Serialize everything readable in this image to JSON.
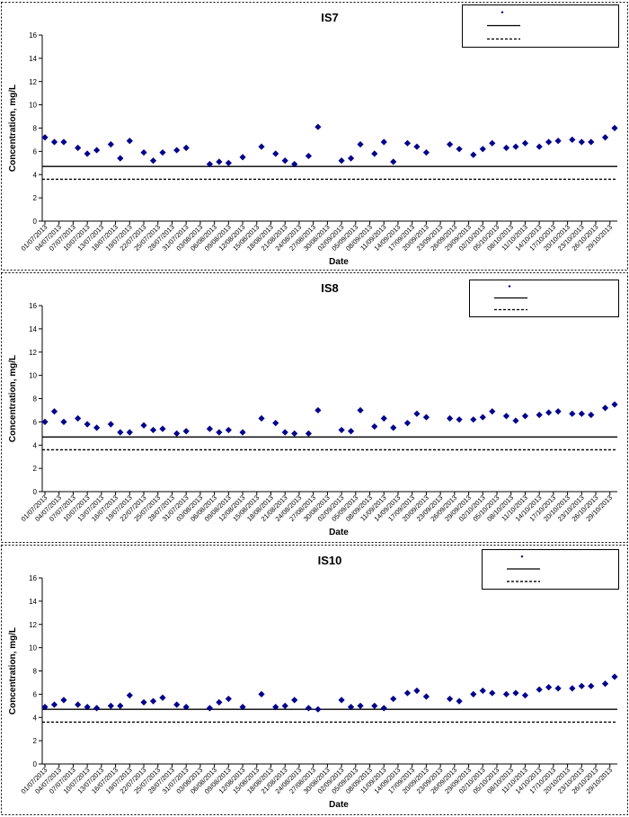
{
  "chart_data": [
    {
      "type": "scatter",
      "title": "IS7",
      "xlabel": "Date",
      "ylabel": "Concentration, mg/L",
      "ylim": [
        0,
        16
      ],
      "yticks": [
        0,
        2,
        4,
        6,
        8,
        10,
        12,
        14,
        16
      ],
      "xlim": [
        "01/07/2013",
        "30/10/2013"
      ],
      "x_tick_labels": [
        "01/07/2013",
        "04/07/2013",
        "07/07/2013",
        "10/07/2013",
        "13/07/2013",
        "16/07/2013",
        "19/07/2013",
        "22/07/2013",
        "25/07/2013",
        "28/07/2013",
        "31/07/2013",
        "03/08/2013",
        "06/08/2013",
        "09/08/2013",
        "12/08/2013",
        "15/08/2013",
        "18/08/2013",
        "21/08/2013",
        "24/08/2013",
        "27/08/2013",
        "30/08/2013",
        "02/09/2013",
        "05/09/2013",
        "08/09/2013",
        "11/09/2013",
        "14/09/2013",
        "17/09/2013",
        "20/09/2013",
        "23/09/2013",
        "26/09/2013",
        "29/09/2013",
        "02/10/2013",
        "05/10/2013",
        "08/10/2013",
        "11/10/2013",
        "14/10/2013",
        "17/10/2013",
        "20/10/2013",
        "23/10/2013",
        "26/10/2013",
        "29/10/2013"
      ],
      "grid": false,
      "legend": {
        "placement": "top-right"
      },
      "series": [
        {
          "marker": "diamond",
          "color": "#00008B",
          "points": [
            {
              "x": "01/07/2013",
              "y": 7.2
            },
            {
              "x": "03/07/2013",
              "y": 6.8
            },
            {
              "x": "05/07/2013",
              "y": 6.8
            },
            {
              "x": "08/07/2013",
              "y": 6.3
            },
            {
              "x": "10/07/2013",
              "y": 5.8
            },
            {
              "x": "12/07/2013",
              "y": 6.1
            },
            {
              "x": "15/07/2013",
              "y": 6.6
            },
            {
              "x": "17/07/2013",
              "y": 5.4
            },
            {
              "x": "19/07/2013",
              "y": 6.9
            },
            {
              "x": "22/07/2013",
              "y": 5.9
            },
            {
              "x": "24/07/2013",
              "y": 5.2
            },
            {
              "x": "26/07/2013",
              "y": 5.9
            },
            {
              "x": "29/07/2013",
              "y": 6.1
            },
            {
              "x": "31/07/2013",
              "y": 6.3
            },
            {
              "x": "05/08/2013",
              "y": 4.9
            },
            {
              "x": "07/08/2013",
              "y": 5.1
            },
            {
              "x": "09/08/2013",
              "y": 5.0
            },
            {
              "x": "12/08/2013",
              "y": 5.5
            },
            {
              "x": "16/08/2013",
              "y": 6.4
            },
            {
              "x": "19/08/2013",
              "y": 5.8
            },
            {
              "x": "21/08/2013",
              "y": 5.2
            },
            {
              "x": "23/08/2013",
              "y": 4.9
            },
            {
              "x": "26/08/2013",
              "y": 5.6
            },
            {
              "x": "28/08/2013",
              "y": 8.1
            },
            {
              "x": "02/09/2013",
              "y": 5.2
            },
            {
              "x": "04/09/2013",
              "y": 5.4
            },
            {
              "x": "06/09/2013",
              "y": 6.6
            },
            {
              "x": "09/09/2013",
              "y": 5.8
            },
            {
              "x": "11/09/2013",
              "y": 6.8
            },
            {
              "x": "13/09/2013",
              "y": 5.1
            },
            {
              "x": "16/09/2013",
              "y": 6.7
            },
            {
              "x": "18/09/2013",
              "y": 6.4
            },
            {
              "x": "20/09/2013",
              "y": 5.9
            },
            {
              "x": "25/09/2013",
              "y": 6.6
            },
            {
              "x": "27/09/2013",
              "y": 6.2
            },
            {
              "x": "30/09/2013",
              "y": 5.7
            },
            {
              "x": "02/10/2013",
              "y": 6.2
            },
            {
              "x": "04/10/2013",
              "y": 6.7
            },
            {
              "x": "07/10/2013",
              "y": 6.3
            },
            {
              "x": "09/10/2013",
              "y": 6.4
            },
            {
              "x": "11/10/2013",
              "y": 6.7
            },
            {
              "x": "14/10/2013",
              "y": 6.4
            },
            {
              "x": "16/10/2013",
              "y": 6.8
            },
            {
              "x": "18/10/2013",
              "y": 6.9
            },
            {
              "x": "21/10/2013",
              "y": 7.0
            },
            {
              "x": "23/10/2013",
              "y": 6.8
            },
            {
              "x": "25/10/2013",
              "y": 6.8
            },
            {
              "x": "28/10/2013",
              "y": 7.2
            },
            {
              "x": "30/10/2013",
              "y": 8.0
            }
          ]
        }
      ],
      "reference_lines": [
        {
          "style": "solid",
          "y": 4.7
        },
        {
          "style": "dashed",
          "y": 3.6
        }
      ]
    },
    {
      "type": "scatter",
      "title": "IS8",
      "xlabel": "Date",
      "ylabel": "Concentration, mg/L",
      "ylim": [
        0,
        16
      ],
      "yticks": [
        0,
        2,
        4,
        6,
        8,
        10,
        12,
        14,
        16
      ],
      "xlim": [
        "01/07/2013",
        "30/10/2013"
      ],
      "x_tick_labels": [
        "01/07/2013",
        "04/07/2013",
        "07/07/2013",
        "10/07/2013",
        "13/07/2013",
        "16/07/2013",
        "19/07/2013",
        "22/07/2013",
        "25/07/2013",
        "28/07/2013",
        "31/07/2013",
        "03/08/2013",
        "06/08/2013",
        "09/08/2013",
        "12/08/2013",
        "15/08/2013",
        "18/08/2013",
        "21/08/2013",
        "24/08/2013",
        "27/08/2013",
        "30/08/2013",
        "02/09/2013",
        "05/09/2013",
        "08/09/2013",
        "11/09/2013",
        "14/09/2013",
        "17/09/2013",
        "20/09/2013",
        "23/09/2013",
        "26/09/2013",
        "29/09/2013",
        "02/10/2013",
        "05/10/2013",
        "08/10/2013",
        "11/10/2013",
        "14/10/2013",
        "17/10/2013",
        "20/10/2013",
        "23/10/2013",
        "26/10/2013",
        "29/10/2013"
      ],
      "grid": false,
      "legend": {
        "placement": "top-right"
      },
      "series": [
        {
          "marker": "diamond",
          "color": "#00008B",
          "points": [
            {
              "x": "01/07/2013",
              "y": 6.0
            },
            {
              "x": "03/07/2013",
              "y": 6.9
            },
            {
              "x": "05/07/2013",
              "y": 6.0
            },
            {
              "x": "08/07/2013",
              "y": 6.3
            },
            {
              "x": "10/07/2013",
              "y": 5.8
            },
            {
              "x": "12/07/2013",
              "y": 5.5
            },
            {
              "x": "15/07/2013",
              "y": 5.8
            },
            {
              "x": "17/07/2013",
              "y": 5.1
            },
            {
              "x": "19/07/2013",
              "y": 5.1
            },
            {
              "x": "22/07/2013",
              "y": 5.7
            },
            {
              "x": "24/07/2013",
              "y": 5.3
            },
            {
              "x": "26/07/2013",
              "y": 5.4
            },
            {
              "x": "29/07/2013",
              "y": 5.0
            },
            {
              "x": "31/07/2013",
              "y": 5.2
            },
            {
              "x": "05/08/2013",
              "y": 5.4
            },
            {
              "x": "07/08/2013",
              "y": 5.1
            },
            {
              "x": "09/08/2013",
              "y": 5.3
            },
            {
              "x": "12/08/2013",
              "y": 5.1
            },
            {
              "x": "16/08/2013",
              "y": 6.3
            },
            {
              "x": "19/08/2013",
              "y": 5.9
            },
            {
              "x": "21/08/2013",
              "y": 5.1
            },
            {
              "x": "23/08/2013",
              "y": 5.0
            },
            {
              "x": "26/08/2013",
              "y": 5.0
            },
            {
              "x": "28/08/2013",
              "y": 7.0
            },
            {
              "x": "02/09/2013",
              "y": 5.3
            },
            {
              "x": "04/09/2013",
              "y": 5.2
            },
            {
              "x": "06/09/2013",
              "y": 7.0
            },
            {
              "x": "09/09/2013",
              "y": 5.6
            },
            {
              "x": "11/09/2013",
              "y": 6.3
            },
            {
              "x": "13/09/2013",
              "y": 5.5
            },
            {
              "x": "16/09/2013",
              "y": 5.9
            },
            {
              "x": "18/09/2013",
              "y": 6.7
            },
            {
              "x": "20/09/2013",
              "y": 6.4
            },
            {
              "x": "25/09/2013",
              "y": 6.3
            },
            {
              "x": "27/09/2013",
              "y": 6.2
            },
            {
              "x": "30/09/2013",
              "y": 6.2
            },
            {
              "x": "02/10/2013",
              "y": 6.4
            },
            {
              "x": "04/10/2013",
              "y": 6.9
            },
            {
              "x": "07/10/2013",
              "y": 6.5
            },
            {
              "x": "09/10/2013",
              "y": 6.1
            },
            {
              "x": "11/10/2013",
              "y": 6.5
            },
            {
              "x": "14/10/2013",
              "y": 6.6
            },
            {
              "x": "16/10/2013",
              "y": 6.8
            },
            {
              "x": "18/10/2013",
              "y": 6.9
            },
            {
              "x": "21/10/2013",
              "y": 6.7
            },
            {
              "x": "23/10/2013",
              "y": 6.7
            },
            {
              "x": "25/10/2013",
              "y": 6.6
            },
            {
              "x": "28/10/2013",
              "y": 7.2
            },
            {
              "x": "30/10/2013",
              "y": 7.5
            }
          ]
        }
      ],
      "reference_lines": [
        {
          "style": "solid",
          "y": 4.7
        },
        {
          "style": "dashed",
          "y": 3.6
        }
      ]
    },
    {
      "type": "scatter",
      "title": "IS10",
      "xlabel": "Date",
      "ylabel": "Concentration, mg/L",
      "ylim": [
        0,
        16
      ],
      "yticks": [
        0,
        2,
        4,
        6,
        8,
        10,
        12,
        14,
        16
      ],
      "xlim": [
        "01/07/2013",
        "30/10/2013"
      ],
      "x_tick_labels": [
        "01/07/2013",
        "04/07/2013",
        "07/07/2013",
        "10/07/2013",
        "13/07/2013",
        "16/07/2013",
        "19/07/2013",
        "22/07/2013",
        "25/07/2013",
        "28/07/2013",
        "31/07/2013",
        "03/08/2013",
        "06/08/2013",
        "09/08/2013",
        "12/08/2013",
        "15/08/2013",
        "18/08/2013",
        "21/08/2013",
        "24/08/2013",
        "27/08/2013",
        "30/08/2013",
        "02/09/2013",
        "05/09/2013",
        "08/09/2013",
        "11/09/2013",
        "14/09/2013",
        "17/09/2013",
        "20/09/2013",
        "23/09/2013",
        "26/09/2013",
        "29/09/2013",
        "02/10/2013",
        "05/10/2013",
        "08/10/2013",
        "11/10/2013",
        "14/10/2013",
        "17/10/2013",
        "20/10/2013",
        "23/10/2013",
        "26/10/2013",
        "29/10/2013"
      ],
      "grid": false,
      "legend": {
        "placement": "top-right"
      },
      "series": [
        {
          "marker": "diamond",
          "color": "#00008B",
          "points": [
            {
              "x": "01/07/2013",
              "y": 4.9
            },
            {
              "x": "03/07/2013",
              "y": 5.1
            },
            {
              "x": "05/07/2013",
              "y": 5.5
            },
            {
              "x": "08/07/2013",
              "y": 5.1
            },
            {
              "x": "10/07/2013",
              "y": 4.9
            },
            {
              "x": "12/07/2013",
              "y": 4.8
            },
            {
              "x": "15/07/2013",
              "y": 5.0
            },
            {
              "x": "17/07/2013",
              "y": 5.0
            },
            {
              "x": "19/07/2013",
              "y": 5.9
            },
            {
              "x": "22/07/2013",
              "y": 5.3
            },
            {
              "x": "24/07/2013",
              "y": 5.4
            },
            {
              "x": "26/07/2013",
              "y": 5.7
            },
            {
              "x": "29/07/2013",
              "y": 5.1
            },
            {
              "x": "31/07/2013",
              "y": 4.9
            },
            {
              "x": "05/08/2013",
              "y": 4.8
            },
            {
              "x": "07/08/2013",
              "y": 5.3
            },
            {
              "x": "09/08/2013",
              "y": 5.6
            },
            {
              "x": "12/08/2013",
              "y": 4.9
            },
            {
              "x": "16/08/2013",
              "y": 6.0
            },
            {
              "x": "19/08/2013",
              "y": 4.9
            },
            {
              "x": "21/08/2013",
              "y": 5.0
            },
            {
              "x": "23/08/2013",
              "y": 5.5
            },
            {
              "x": "26/08/2013",
              "y": 4.8
            },
            {
              "x": "28/08/2013",
              "y": 4.7
            },
            {
              "x": "02/09/2013",
              "y": 5.5
            },
            {
              "x": "04/09/2013",
              "y": 4.9
            },
            {
              "x": "06/09/2013",
              "y": 5.0
            },
            {
              "x": "09/09/2013",
              "y": 5.0
            },
            {
              "x": "11/09/2013",
              "y": 4.8
            },
            {
              "x": "13/09/2013",
              "y": 5.6
            },
            {
              "x": "16/09/2013",
              "y": 6.1
            },
            {
              "x": "18/09/2013",
              "y": 6.3
            },
            {
              "x": "20/09/2013",
              "y": 5.8
            },
            {
              "x": "25/09/2013",
              "y": 5.6
            },
            {
              "x": "27/09/2013",
              "y": 5.4
            },
            {
              "x": "30/09/2013",
              "y": 6.0
            },
            {
              "x": "02/10/2013",
              "y": 6.3
            },
            {
              "x": "04/10/2013",
              "y": 6.1
            },
            {
              "x": "07/10/2013",
              "y": 6.0
            },
            {
              "x": "09/10/2013",
              "y": 6.1
            },
            {
              "x": "11/10/2013",
              "y": 5.9
            },
            {
              "x": "14/10/2013",
              "y": 6.4
            },
            {
              "x": "16/10/2013",
              "y": 6.6
            },
            {
              "x": "18/10/2013",
              "y": 6.5
            },
            {
              "x": "21/10/2013",
              "y": 6.5
            },
            {
              "x": "23/10/2013",
              "y": 6.7
            },
            {
              "x": "25/10/2013",
              "y": 6.7
            },
            {
              "x": "28/10/2013",
              "y": 6.9
            },
            {
              "x": "30/10/2013",
              "y": 7.5
            }
          ]
        }
      ],
      "reference_lines": [
        {
          "style": "solid",
          "y": 4.7
        },
        {
          "style": "dashed",
          "y": 3.6
        }
      ]
    }
  ]
}
